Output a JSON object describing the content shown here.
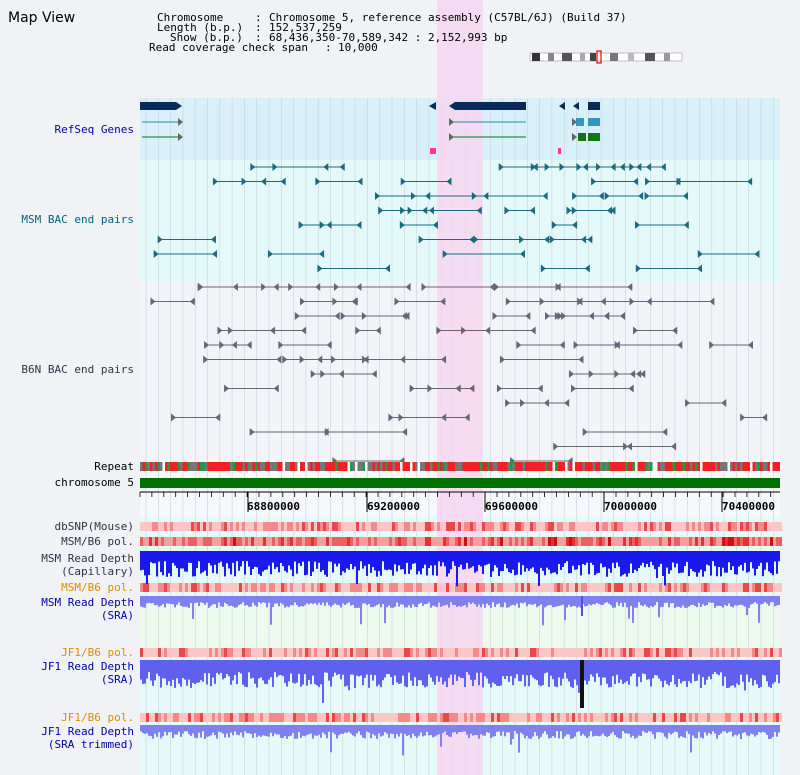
{
  "window_title": "Map View",
  "info": {
    "chromosome_key": "Chromosome",
    "chromosome_val": "Chromosome 5, reference assembly (C57BL/6J) (Build 37)",
    "length_key": "Length (b.p.)",
    "length_val": "152,537,259",
    "show_key": "Show (b.p.)",
    "show_val": "68,436,350-70,589,342 : 2,152,993 bp",
    "coverage_key": "Read coverage check span",
    "coverage_val": "10,000"
  },
  "tracks": {
    "refseq": "RefSeq Genes",
    "msm_bac": "MSM BAC end pairs",
    "b6n_bac": "B6N BAC end pairs",
    "repeat": "Repeat",
    "chromosome": "chromosome 5",
    "dbsnp": "dbSNP(Mouse)",
    "msm_b6_pol_1": "MSM/B6 pol.",
    "msm_depth_cap_1": "MSM Read Depth",
    "msm_depth_cap_2": "(Capillary)",
    "msm_b6_pol_2": "MSM/B6 pol.",
    "msm_depth_sra_1": "MSM Read Depth",
    "msm_depth_sra_2": "(SRA)",
    "jf1_b6_pol_1": "JF1/B6 pol.",
    "jf1_depth_sra_1": "JF1 Read Depth",
    "jf1_depth_sra_2": "(SRA)",
    "jf1_b6_pol_2": "JF1/B6 pol.",
    "jf1_depth_trim_1": "JF1 Read Depth",
    "jf1_depth_trim_2": "(SRA trimmed)"
  },
  "axis_ticks": [
    "68800000",
    "69200000",
    "69600000",
    "70000000",
    "70400000"
  ],
  "colors": {
    "label_blue": "#0000aa",
    "label_teal": "#006677",
    "label_gray": "#333344",
    "label_orange": "#e08a00",
    "highlight": "#f7d6f0",
    "chromosome": "#007000"
  }
}
